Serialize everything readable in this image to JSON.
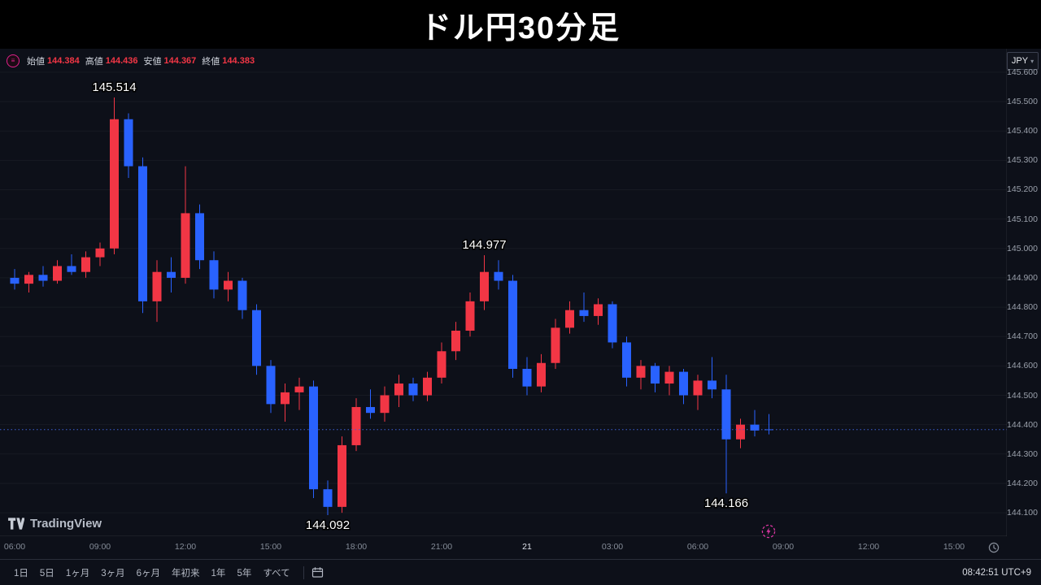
{
  "title": "ドル円30分足",
  "legend": {
    "items": [
      {
        "label": "始値",
        "value": "144.384"
      },
      {
        "label": "高値",
        "value": "144.436"
      },
      {
        "label": "安値",
        "value": "144.367"
      },
      {
        "label": "終値",
        "value": "144.383"
      }
    ],
    "value_color": "#f23645"
  },
  "currency_selector": {
    "label": "JPY"
  },
  "toolbar": {
    "ranges": [
      "1日",
      "5日",
      "1ヶ月",
      "3ヶ月",
      "6ヶ月",
      "年初来",
      "1年",
      "5年",
      "すべて"
    ],
    "clock": "08:42:51 UTC+9"
  },
  "branding": {
    "logo_text": "TradingView"
  },
  "colors": {
    "up": "#f23645",
    "down": "#2962ff",
    "price_line": "#3e5fd8",
    "accent_pink": "#d6369f"
  },
  "chart_data": {
    "type": "candlestick",
    "title": "ドル円30分足",
    "pair": "ドル円",
    "interval_minutes": 30,
    "price_range": [
      145.68,
      144.02
    ],
    "price_axis_ticks": [
      "145.600",
      "145.500",
      "145.400",
      "145.300",
      "145.200",
      "145.100",
      "145.000",
      "144.900",
      "144.800",
      "144.700",
      "144.600",
      "144.500",
      "144.400",
      "144.300",
      "144.200",
      "144.100"
    ],
    "time_axis_ticks": [
      {
        "label": "06:00",
        "slot": 1
      },
      {
        "label": "09:00",
        "slot": 7
      },
      {
        "label": "12:00",
        "slot": 13
      },
      {
        "label": "15:00",
        "slot": 19
      },
      {
        "label": "18:00",
        "slot": 25
      },
      {
        "label": "21:00",
        "slot": 31
      },
      {
        "label": "21",
        "slot": 37,
        "major": true
      },
      {
        "label": "03:00",
        "slot": 43
      },
      {
        "label": "06:00",
        "slot": 49
      },
      {
        "label": "09:00",
        "slot": 55
      },
      {
        "label": "12:00",
        "slot": 61
      },
      {
        "label": "15:00",
        "slot": 67
      }
    ],
    "candles": [
      [
        144.9,
        144.93,
        144.86,
        144.88
      ],
      [
        144.88,
        144.92,
        144.85,
        144.91
      ],
      [
        144.91,
        144.94,
        144.87,
        144.89
      ],
      [
        144.89,
        144.96,
        144.88,
        144.94
      ],
      [
        144.94,
        144.98,
        144.91,
        144.92
      ],
      [
        144.92,
        144.99,
        144.9,
        144.97
      ],
      [
        144.97,
        145.02,
        144.94,
        145.0
      ],
      [
        145.0,
        145.514,
        144.98,
        145.44
      ],
      [
        145.44,
        145.46,
        145.24,
        145.28
      ],
      [
        145.28,
        145.31,
        144.78,
        144.82
      ],
      [
        144.82,
        144.96,
        144.75,
        144.92
      ],
      [
        144.92,
        144.97,
        144.85,
        144.9
      ],
      [
        144.9,
        145.28,
        144.88,
        145.12
      ],
      [
        145.12,
        145.15,
        144.93,
        144.96
      ],
      [
        144.96,
        144.99,
        144.83,
        144.86
      ],
      [
        144.86,
        144.92,
        144.82,
        144.89
      ],
      [
        144.89,
        144.9,
        144.76,
        144.79
      ],
      [
        144.79,
        144.81,
        144.57,
        144.6
      ],
      [
        144.6,
        144.62,
        144.44,
        144.47
      ],
      [
        144.47,
        144.54,
        144.41,
        144.51
      ],
      [
        144.51,
        144.56,
        144.45,
        144.53
      ],
      [
        144.53,
        144.55,
        144.15,
        144.18
      ],
      [
        144.18,
        144.21,
        144.092,
        144.12
      ],
      [
        144.12,
        144.36,
        144.1,
        144.33
      ],
      [
        144.33,
        144.49,
        144.31,
        144.46
      ],
      [
        144.46,
        144.52,
        144.42,
        144.44
      ],
      [
        144.44,
        144.53,
        144.41,
        144.5
      ],
      [
        144.5,
        144.57,
        144.46,
        144.54
      ],
      [
        144.54,
        144.56,
        144.48,
        144.5
      ],
      [
        144.5,
        144.58,
        144.48,
        144.56
      ],
      [
        144.56,
        144.68,
        144.54,
        144.65
      ],
      [
        144.65,
        144.75,
        144.62,
        144.72
      ],
      [
        144.72,
        144.85,
        144.7,
        144.82
      ],
      [
        144.82,
        144.977,
        144.79,
        144.92
      ],
      [
        144.92,
        144.96,
        144.86,
        144.89
      ],
      [
        144.89,
        144.91,
        144.56,
        144.59
      ],
      [
        144.59,
        144.63,
        144.5,
        144.53
      ],
      [
        144.53,
        144.64,
        144.51,
        144.61
      ],
      [
        144.61,
        144.76,
        144.59,
        144.73
      ],
      [
        144.73,
        144.82,
        144.71,
        144.79
      ],
      [
        144.79,
        144.85,
        144.75,
        144.77
      ],
      [
        144.77,
        144.83,
        144.74,
        144.81
      ],
      [
        144.81,
        144.82,
        144.66,
        144.68
      ],
      [
        144.68,
        144.7,
        144.53,
        144.56
      ],
      [
        144.56,
        144.62,
        144.52,
        144.6
      ],
      [
        144.6,
        144.61,
        144.51,
        144.54
      ],
      [
        144.54,
        144.6,
        144.5,
        144.58
      ],
      [
        144.58,
        144.59,
        144.47,
        144.5
      ],
      [
        144.5,
        144.57,
        144.45,
        144.55
      ],
      [
        144.55,
        144.63,
        144.49,
        144.52
      ],
      [
        144.52,
        144.57,
        144.166,
        144.35
      ],
      [
        144.35,
        144.42,
        144.32,
        144.4
      ],
      [
        144.4,
        144.45,
        144.36,
        144.38
      ],
      [
        144.384,
        144.436,
        144.367,
        144.383
      ]
    ],
    "price_line": {
      "price": 144.383
    },
    "annotations": [
      {
        "text": "145.514",
        "candle": 8,
        "price": 145.514,
        "side": "above"
      },
      {
        "text": "144.977",
        "candle": 34,
        "price": 144.977,
        "side": "above"
      },
      {
        "text": "144.092",
        "candle": 23,
        "price": 144.092,
        "side": "below"
      },
      {
        "text": "144.166",
        "candle": 51,
        "price": 144.166,
        "side": "below"
      }
    ]
  }
}
